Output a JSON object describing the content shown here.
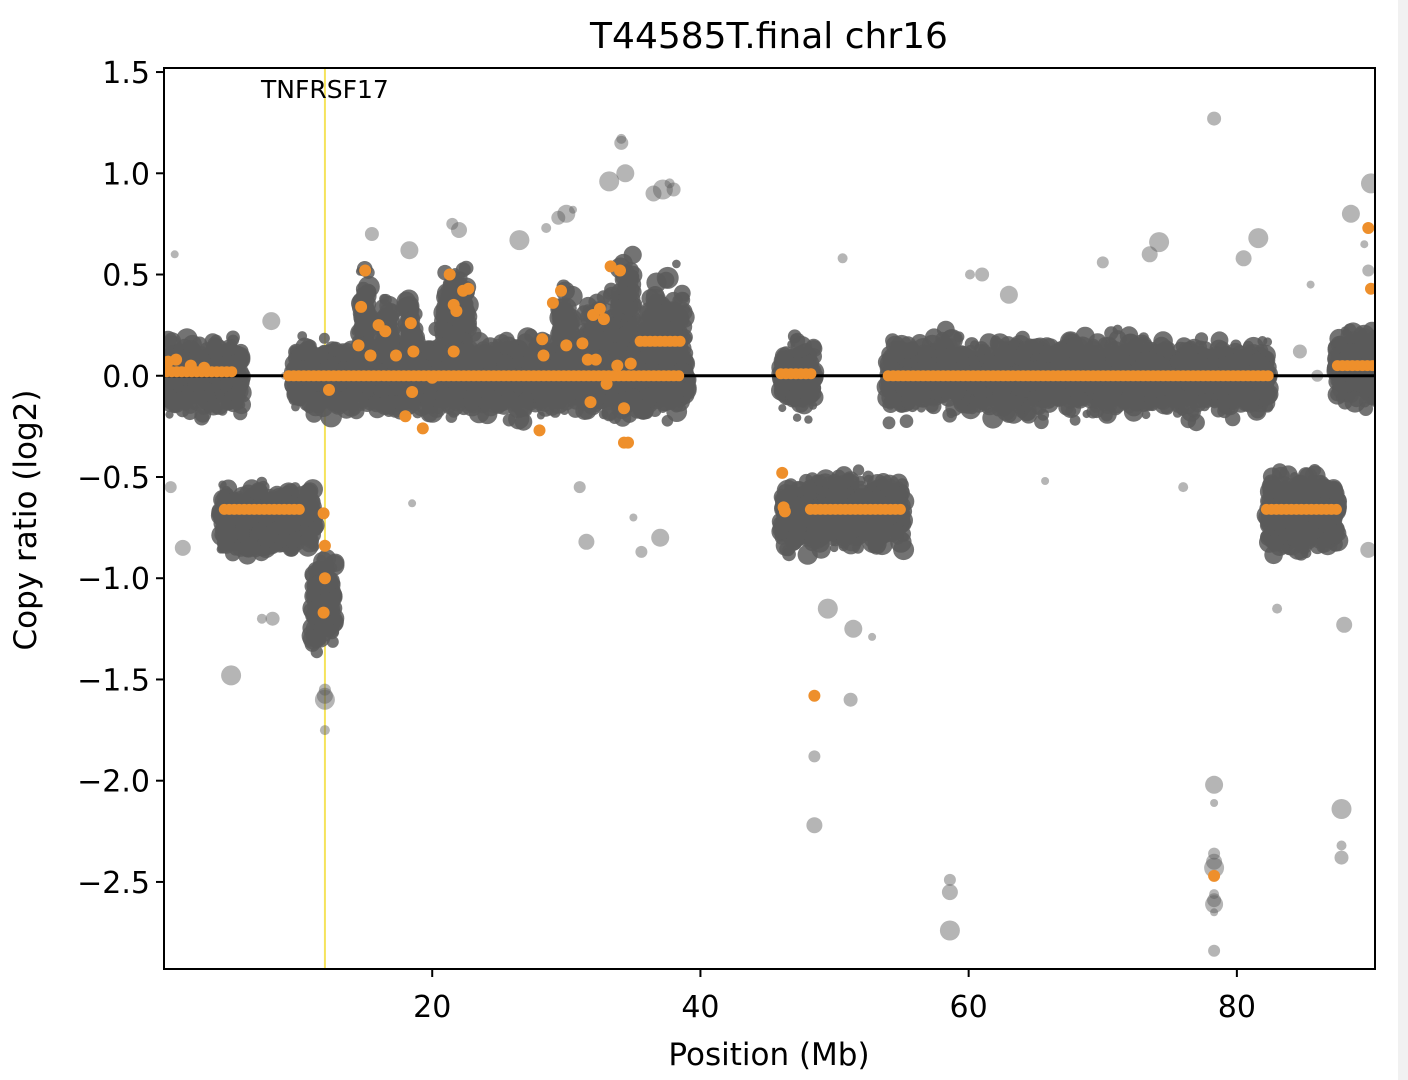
{
  "chart_data": {
    "type": "scatter",
    "title": "T44585T.final chr16",
    "xlabel": "Position (Mb)",
    "ylabel": "Copy ratio (log2)",
    "xlim": [
      0,
      90.3
    ],
    "ylim": [
      -2.93,
      1.52
    ],
    "xticks": [
      20,
      40,
      60,
      80
    ],
    "xtick_labels": [
      "20",
      "40",
      "60",
      "80"
    ],
    "yticks": [
      1.5,
      1.0,
      0.5,
      0.0,
      -0.5,
      -1.0,
      -1.5,
      -2.0,
      -2.5
    ],
    "ytick_labels": [
      "1.5",
      "1.0",
      "0.5",
      "0.0",
      "−0.5",
      "−1.0",
      "−1.5",
      "−2.0",
      "−2.5"
    ],
    "gene_marker": {
      "label": "TNFRSF17",
      "x": 12.0,
      "color": "#f5e35c"
    },
    "baseline": 0.0,
    "colors": {
      "bins": "#5a5a5a",
      "segments": "#ee8f2b",
      "axis": "#000000"
    },
    "bin_clusters": [
      {
        "x0": 0.2,
        "x1": 5.8,
        "center": 0.0,
        "spread": 0.33
      },
      {
        "x0": 4.2,
        "x1": 9.8,
        "center": -0.72,
        "spread": 0.33
      },
      {
        "x0": 9.3,
        "x1": 11.3,
        "center": -0.7,
        "spread": 0.3
      },
      {
        "x0": 9.6,
        "x1": 14.2,
        "center": 0.0,
        "spread": 0.33
      },
      {
        "x0": 11.0,
        "x1": 12.8,
        "center": -1.1,
        "spread": 0.45
      },
      {
        "x0": 14.2,
        "x1": 39.0,
        "center": 0.0,
        "spread": 0.36
      },
      {
        "x0": 14.6,
        "x1": 15.4,
        "center": 0.3,
        "spread": 0.45
      },
      {
        "x0": 16.3,
        "x1": 17.0,
        "center": 0.2,
        "spread": 0.45
      },
      {
        "x0": 18.0,
        "x1": 18.8,
        "center": 0.2,
        "spread": 0.45
      },
      {
        "x0": 20.8,
        "x1": 22.7,
        "center": 0.3,
        "spread": 0.45
      },
      {
        "x0": 29.5,
        "x1": 30.5,
        "center": 0.2,
        "spread": 0.5
      },
      {
        "x0": 31.3,
        "x1": 34.8,
        "center": 0.1,
        "spread": 0.55
      },
      {
        "x0": 34.0,
        "x1": 35.2,
        "center": 0.25,
        "spread": 0.7
      },
      {
        "x0": 35.8,
        "x1": 38.9,
        "center": 0.17,
        "spread": 0.55
      },
      {
        "x0": 46.0,
        "x1": 48.5,
        "center": 0.0,
        "spread": 0.33
      },
      {
        "x0": 46.0,
        "x1": 48.0,
        "center": -0.7,
        "spread": 0.35
      },
      {
        "x0": 48.1,
        "x1": 55.2,
        "center": -0.68,
        "spread": 0.35
      },
      {
        "x0": 53.9,
        "x1": 82.4,
        "center": 0.0,
        "spread": 0.35
      },
      {
        "x0": 82.2,
        "x1": 87.6,
        "center": -0.68,
        "spread": 0.38
      },
      {
        "x0": 87.4,
        "x1": 90.3,
        "center": 0.05,
        "spread": 0.38
      }
    ],
    "bin_outliers": [
      [
        0.8,
        0.6
      ],
      [
        0.5,
        -0.55
      ],
      [
        1.4,
        -0.85
      ],
      [
        5.0,
        -1.48
      ],
      [
        7.3,
        -1.2
      ],
      [
        8.1,
        -1.2
      ],
      [
        8.0,
        0.27
      ],
      [
        9.0,
        0.0
      ],
      [
        12.0,
        -1.55
      ],
      [
        12.0,
        -1.58
      ],
      [
        12.0,
        -1.6
      ],
      [
        12.0,
        -1.75
      ],
      [
        15.5,
        0.7
      ],
      [
        18.3,
        0.62
      ],
      [
        18.5,
        -0.63
      ],
      [
        21.5,
        0.75
      ],
      [
        22.0,
        0.72
      ],
      [
        26.5,
        0.67
      ],
      [
        28.5,
        0.73
      ],
      [
        29.4,
        0.78
      ],
      [
        30.0,
        0.8
      ],
      [
        30.5,
        0.82
      ],
      [
        31.0,
        -0.55
      ],
      [
        31.5,
        -0.82
      ],
      [
        33.2,
        0.96
      ],
      [
        34.1,
        1.17
      ],
      [
        34.1,
        1.15
      ],
      [
        34.4,
        1.0
      ],
      [
        35.0,
        -0.7
      ],
      [
        35.6,
        -0.87
      ],
      [
        36.5,
        0.9
      ],
      [
        37.2,
        0.92
      ],
      [
        37.7,
        0.95
      ],
      [
        38.0,
        0.92
      ],
      [
        37.0,
        -0.8
      ],
      [
        48.5,
        -1.58
      ],
      [
        48.5,
        -1.88
      ],
      [
        48.5,
        -2.22
      ],
      [
        49.5,
        -1.15
      ],
      [
        50.6,
        0.58
      ],
      [
        51.2,
        -1.6
      ],
      [
        51.4,
        -1.25
      ],
      [
        52.8,
        -1.29
      ],
      [
        58.6,
        -2.49
      ],
      [
        58.6,
        -2.55
      ],
      [
        58.6,
        -2.74
      ],
      [
        60.1,
        0.5
      ],
      [
        61.0,
        0.5
      ],
      [
        63.0,
        0.4
      ],
      [
        65.7,
        -0.52
      ],
      [
        70.0,
        0.56
      ],
      [
        73.5,
        0.6
      ],
      [
        74.2,
        0.66
      ],
      [
        76.0,
        -0.55
      ],
      [
        78.3,
        1.27
      ],
      [
        78.3,
        -2.02
      ],
      [
        78.3,
        -2.11
      ],
      [
        78.3,
        -2.36
      ],
      [
        78.3,
        -2.4
      ],
      [
        78.3,
        -2.43
      ],
      [
        78.3,
        -2.56
      ],
      [
        78.3,
        -2.59
      ],
      [
        78.3,
        -2.61
      ],
      [
        78.3,
        -2.65
      ],
      [
        78.3,
        -2.84
      ],
      [
        80.5,
        0.58
      ],
      [
        81.6,
        0.68
      ],
      [
        83.0,
        -1.15
      ],
      [
        84.7,
        0.12
      ],
      [
        84.9,
        -0.55
      ],
      [
        85.5,
        0.45
      ],
      [
        86.0,
        0.0
      ],
      [
        88.0,
        -1.23
      ],
      [
        87.8,
        -2.14
      ],
      [
        87.8,
        -2.32
      ],
      [
        87.8,
        -2.38
      ],
      [
        88.5,
        0.8
      ],
      [
        89.5,
        0.65
      ],
      [
        89.8,
        0.52
      ],
      [
        89.8,
        -0.86
      ],
      [
        90.0,
        0.95
      ]
    ],
    "segments": [
      {
        "x0": 0.2,
        "x1": 5.3,
        "y": 0.02
      },
      {
        "x0": 4.5,
        "x1": 10.3,
        "y": -0.66
      },
      {
        "x0": 9.3,
        "x1": 38.5,
        "y": 0.0
      },
      {
        "x0": 35.5,
        "x1": 38.5,
        "y": 0.17
      },
      {
        "x0": 46.0,
        "x1": 48.5,
        "y": 0.01
      },
      {
        "x0": 48.2,
        "x1": 55.0,
        "y": -0.66
      },
      {
        "x0": 54.0,
        "x1": 82.4,
        "y": 0.0
      },
      {
        "x0": 82.2,
        "x1": 87.5,
        "y": -0.66
      },
      {
        "x0": 87.5,
        "x1": 90.3,
        "y": 0.05
      }
    ],
    "segment_points": [
      [
        0.3,
        0.07
      ],
      [
        0.9,
        0.08
      ],
      [
        2.0,
        0.05
      ],
      [
        3.0,
        0.04
      ],
      [
        11.9,
        -0.68
      ],
      [
        12.0,
        -0.84
      ],
      [
        12.0,
        -1.0
      ],
      [
        11.9,
        -1.17
      ],
      [
        12.3,
        -0.07
      ],
      [
        14.5,
        0.15
      ],
      [
        15.0,
        0.52
      ],
      [
        14.7,
        0.34
      ],
      [
        15.4,
        0.1
      ],
      [
        16.0,
        0.25
      ],
      [
        16.5,
        0.22
      ],
      [
        17.3,
        0.1
      ],
      [
        18.0,
        -0.2
      ],
      [
        18.4,
        0.26
      ],
      [
        18.5,
        -0.08
      ],
      [
        18.6,
        0.12
      ],
      [
        19.3,
        -0.26
      ],
      [
        20.0,
        -0.01
      ],
      [
        21.3,
        0.5
      ],
      [
        21.6,
        0.12
      ],
      [
        21.6,
        0.35
      ],
      [
        21.8,
        0.32
      ],
      [
        22.3,
        0.42
      ],
      [
        22.7,
        0.43
      ],
      [
        28.0,
        -0.27
      ],
      [
        28.2,
        0.18
      ],
      [
        28.3,
        0.1
      ],
      [
        29.0,
        0.36
      ],
      [
        29.6,
        0.42
      ],
      [
        30.0,
        0.15
      ],
      [
        31.2,
        0.16
      ],
      [
        31.6,
        0.08
      ],
      [
        31.8,
        -0.13
      ],
      [
        32.0,
        0.3
      ],
      [
        32.2,
        0.08
      ],
      [
        32.5,
        0.33
      ],
      [
        32.8,
        0.28
      ],
      [
        33.0,
        -0.04
      ],
      [
        33.3,
        0.54
      ],
      [
        33.8,
        0.05
      ],
      [
        34.0,
        0.52
      ],
      [
        34.3,
        -0.33
      ],
      [
        34.6,
        -0.33
      ],
      [
        34.3,
        -0.16
      ],
      [
        34.8,
        0.06
      ],
      [
        46.1,
        -0.48
      ],
      [
        46.2,
        -0.65
      ],
      [
        46.3,
        -0.67
      ],
      [
        48.5,
        -1.58
      ],
      [
        78.3,
        -2.47
      ],
      [
        89.8,
        0.73
      ],
      [
        90.0,
        0.43
      ]
    ]
  }
}
